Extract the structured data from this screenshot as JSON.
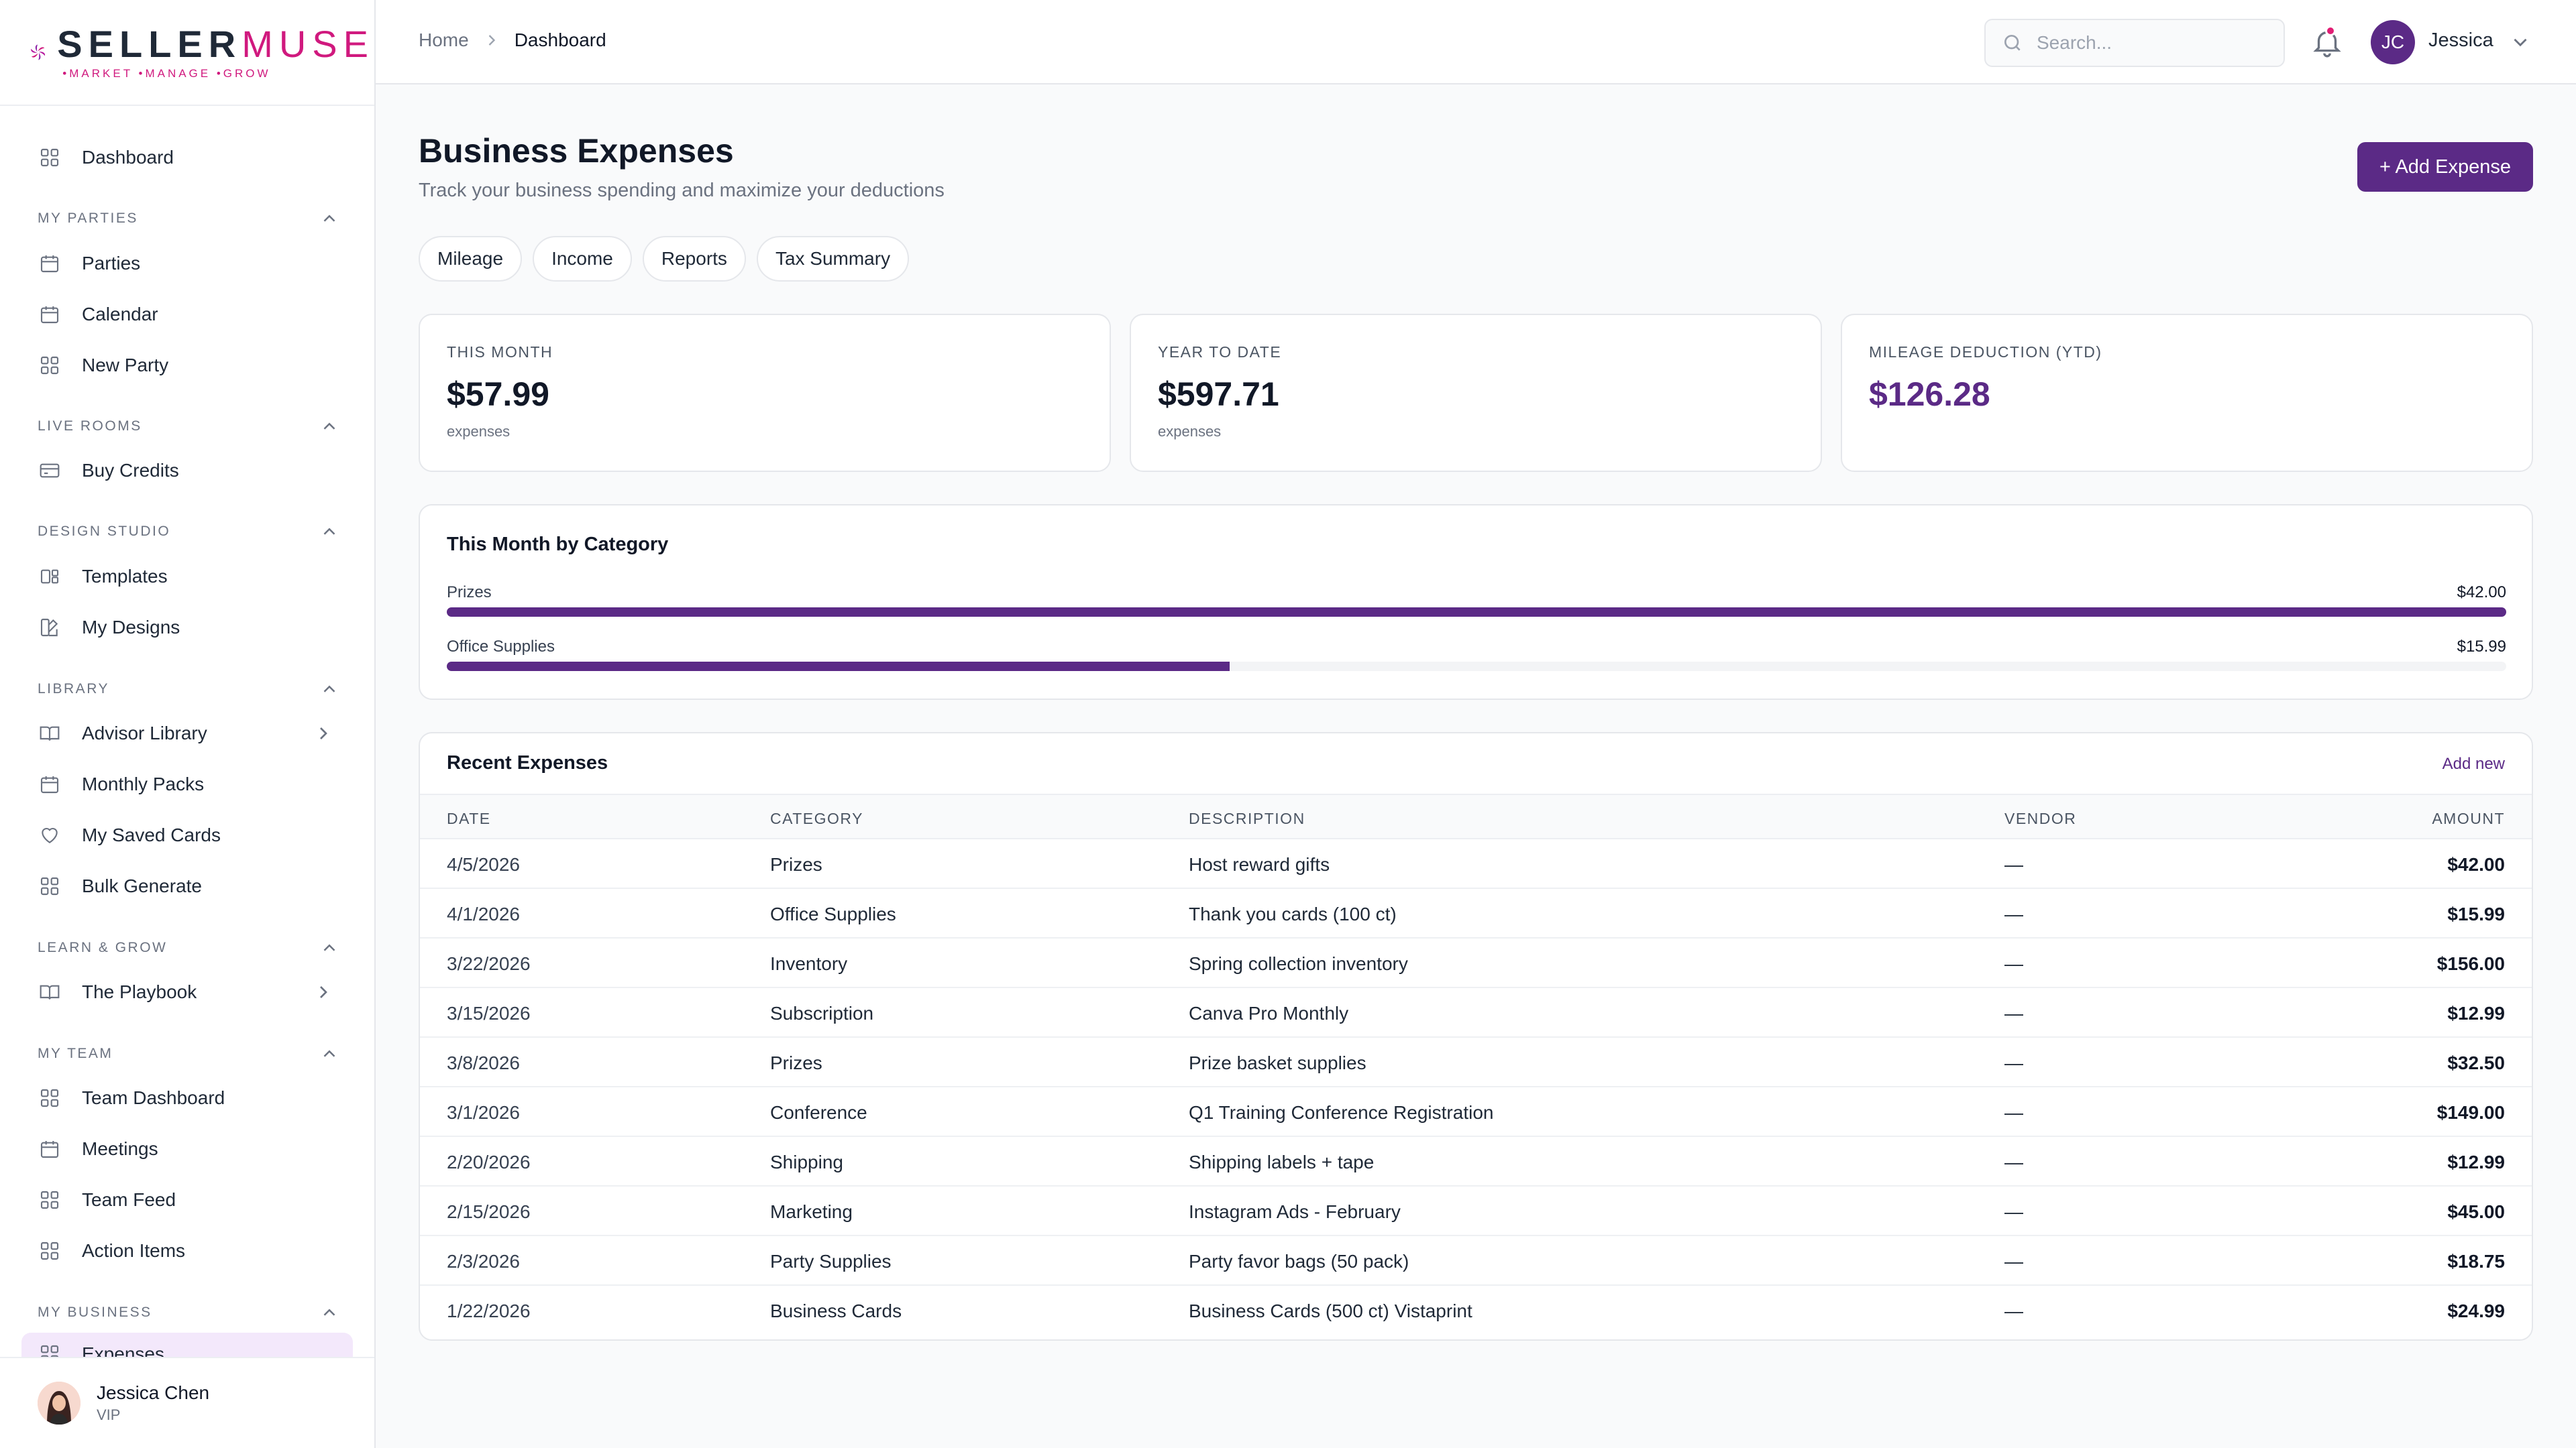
{
  "brand": {
    "name_bold": "SELLER",
    "name_light": "MUSE",
    "tagline": "•MARKET •MANAGE •GROW",
    "accent": "#d0197e",
    "primary": "#5b2a86"
  },
  "sidebar": {
    "items": [
      {
        "label": "Dashboard",
        "icon": "grid-icon"
      },
      {
        "label": "Parties",
        "icon": "calendar-icon"
      },
      {
        "label": "Calendar",
        "icon": "calendar-icon"
      },
      {
        "label": "New Party",
        "icon": "grid-icon"
      },
      {
        "label": "Buy Credits",
        "icon": "credit-card-icon"
      },
      {
        "label": "Templates",
        "icon": "template-icon"
      },
      {
        "label": "My Designs",
        "icon": "design-icon"
      },
      {
        "label": "Advisor Library",
        "icon": "book-icon"
      },
      {
        "label": "Monthly Packs",
        "icon": "calendar-icon"
      },
      {
        "label": "My Saved Cards",
        "icon": "heart-icon"
      },
      {
        "label": "Bulk Generate",
        "icon": "grid-icon"
      },
      {
        "label": "The Playbook",
        "icon": "book-icon"
      },
      {
        "label": "Team Dashboard",
        "icon": "grid-icon"
      },
      {
        "label": "Meetings",
        "icon": "calendar-icon"
      },
      {
        "label": "Team Feed",
        "icon": "grid-icon"
      },
      {
        "label": "Action Items",
        "icon": "grid-icon"
      },
      {
        "label": "Expenses",
        "icon": "grid-icon"
      }
    ],
    "sections": [
      "MY PARTIES",
      "LIVE ROOMS",
      "DESIGN STUDIO",
      "LIBRARY",
      "LEARN & GROW",
      "MY TEAM",
      "MY BUSINESS"
    ],
    "user": {
      "name": "Jessica Chen",
      "tier": "VIP"
    }
  },
  "topbar": {
    "breadcrumb": [
      "Home",
      "Dashboard"
    ],
    "search_placeholder": "Search...",
    "avatar_initials": "JC",
    "user_name": "Jessica"
  },
  "page": {
    "title": "Business Expenses",
    "subtitle": "Track your business spending and maximize your deductions",
    "add_button": "+ Add Expense",
    "tabs": [
      "Mileage",
      "Income",
      "Reports",
      "Tax Summary"
    ]
  },
  "stats": [
    {
      "label": "THIS MONTH",
      "value": "$57.99",
      "sub": "expenses"
    },
    {
      "label": "YEAR TO DATE",
      "value": "$597.71",
      "sub": "expenses"
    },
    {
      "label": "MILEAGE DEDUCTION (YTD)",
      "value": "$126.28",
      "sub": ""
    }
  ],
  "category_breakdown": {
    "title": "This Month by Category",
    "items": [
      {
        "label": "Prizes",
        "value": "$42.00",
        "fraction": 1.0
      },
      {
        "label": "Office Supplies",
        "value": "$15.99",
        "fraction": 0.38
      }
    ]
  },
  "expenses": {
    "title": "Recent Expenses",
    "link": "Add new",
    "columns": [
      "DATE",
      "CATEGORY",
      "DESCRIPTION",
      "VENDOR",
      "AMOUNT"
    ],
    "rows": [
      {
        "date": "4/5/2026",
        "category": "Prizes",
        "description": "Host reward gifts",
        "vendor": "—",
        "amount": "$42.00"
      },
      {
        "date": "4/1/2026",
        "category": "Office Supplies",
        "description": "Thank you cards (100 ct)",
        "vendor": "—",
        "amount": "$15.99"
      },
      {
        "date": "3/22/2026",
        "category": "Inventory",
        "description": "Spring collection inventory",
        "vendor": "—",
        "amount": "$156.00"
      },
      {
        "date": "3/15/2026",
        "category": "Subscription",
        "description": "Canva Pro Monthly",
        "vendor": "—",
        "amount": "$12.99"
      },
      {
        "date": "3/8/2026",
        "category": "Prizes",
        "description": "Prize basket supplies",
        "vendor": "—",
        "amount": "$32.50"
      },
      {
        "date": "3/1/2026",
        "category": "Conference",
        "description": "Q1 Training Conference Registration",
        "vendor": "—",
        "amount": "$149.00"
      },
      {
        "date": "2/20/2026",
        "category": "Shipping",
        "description": "Shipping labels + tape",
        "vendor": "—",
        "amount": "$12.99"
      },
      {
        "date": "2/15/2026",
        "category": "Marketing",
        "description": "Instagram Ads - February",
        "vendor": "—",
        "amount": "$45.00"
      },
      {
        "date": "2/3/2026",
        "category": "Party Supplies",
        "description": "Party favor bags (50 pack)",
        "vendor": "—",
        "amount": "$18.75"
      },
      {
        "date": "1/22/2026",
        "category": "Business Cards",
        "description": "Business Cards (500 ct) Vistaprint",
        "vendor": "—",
        "amount": "$24.99"
      }
    ]
  }
}
